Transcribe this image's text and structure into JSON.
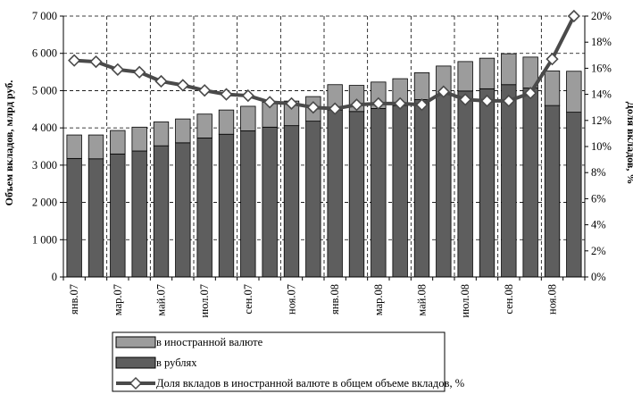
{
  "chart_data": {
    "type": "bar",
    "stacked": true,
    "categories": [
      "янв.07",
      "фев.07",
      "мар.07",
      "апр.07",
      "май.07",
      "июн.07",
      "июл.07",
      "авг.07",
      "сен.07",
      "окт.07",
      "ноя.07",
      "дек.07",
      "янв.08",
      "фев.08",
      "мар.08",
      "апр.08",
      "май.08",
      "июн.08",
      "июл.08",
      "авг.08",
      "сен.08",
      "окт.08",
      "ноя.08",
      "дек.08"
    ],
    "x_tick_labels": [
      "янв.07",
      "",
      "мар.07",
      "",
      "май.07",
      "",
      "июл.07",
      "",
      "сен.07",
      "",
      "ноя.07",
      "",
      "янв.08",
      "",
      "мар.08",
      "",
      "май.08",
      "",
      "июл.08",
      "",
      "сен.08",
      "",
      "ноя.08",
      ""
    ],
    "series": [
      {
        "name": "в рублях",
        "axis": "left",
        "color": "#5e5e5e",
        "values": [
          3180,
          3170,
          3300,
          3380,
          3520,
          3600,
          3730,
          3830,
          3920,
          4020,
          4060,
          4180,
          4480,
          4440,
          4520,
          4600,
          4760,
          4900,
          4990,
          5050,
          5160,
          5070,
          4600,
          4420
        ]
      },
      {
        "name": "в иностранной валюте",
        "axis": "left",
        "color": "#9c9c9c",
        "values": [
          630,
          640,
          630,
          640,
          640,
          640,
          640,
          650,
          660,
          670,
          660,
          660,
          680,
          700,
          710,
          720,
          720,
          760,
          790,
          820,
          830,
          830,
          930,
          1100
        ]
      },
      {
        "name": "Доля вкладов в иностранной валюте в общем объеме вкладов, %",
        "axis": "right",
        "type": "line",
        "color": "#4a4a4a",
        "values": [
          16.6,
          16.5,
          15.9,
          15.7,
          15.0,
          14.7,
          14.3,
          14.0,
          13.9,
          13.4,
          13.3,
          13.0,
          12.9,
          13.2,
          13.3,
          13.3,
          13.2,
          14.2,
          13.6,
          13.5,
          13.5,
          14.1,
          16.7,
          20.0
        ]
      }
    ],
    "ylabel": "Объем вкладов, млрд руб.",
    "y2label": "Доля вкладов, %",
    "ylim": [
      0,
      7000
    ],
    "y2lim": [
      0,
      20
    ],
    "yticks": [
      "0",
      "1 000",
      "2 000",
      "3 000",
      "4 000",
      "5 000",
      "6 000",
      "7 000"
    ],
    "y2ticks": [
      "0%",
      "2%",
      "4%",
      "6%",
      "8%",
      "10%",
      "12%",
      "14%",
      "16%",
      "18%",
      "20%"
    ],
    "grid": "dashed",
    "legend_position": "bottom"
  }
}
